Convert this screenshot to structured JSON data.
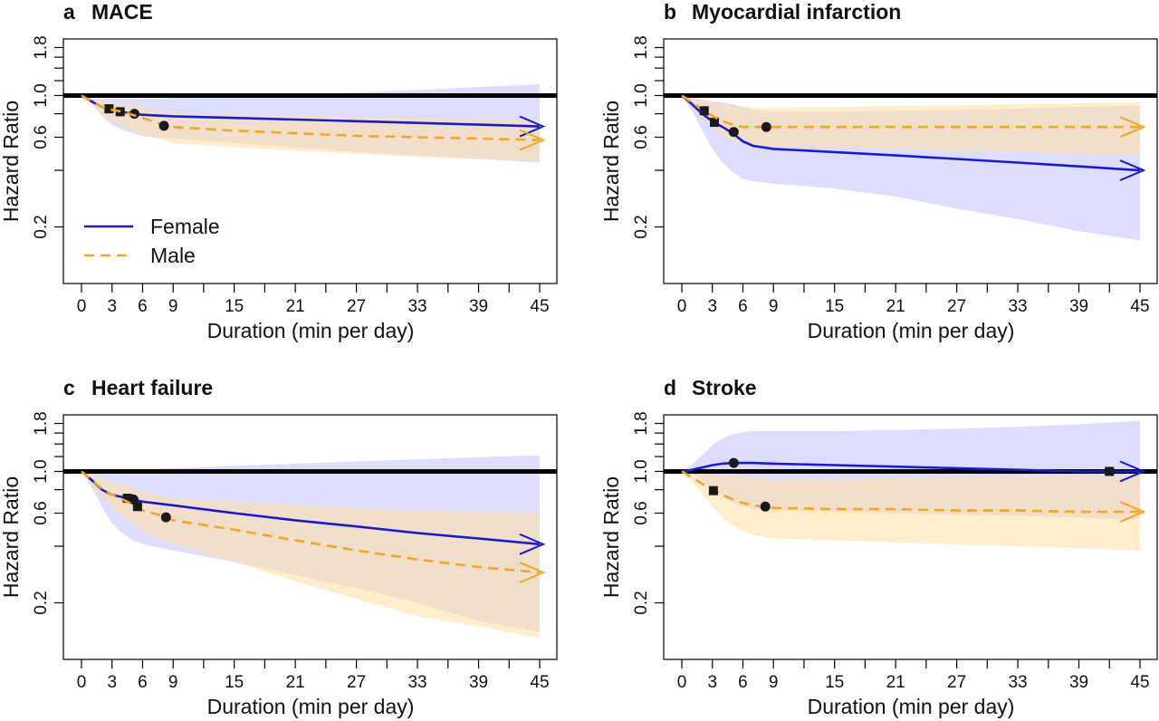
{
  "chart_data": [
    {
      "type": "line",
      "panel_letter": "a",
      "title": "MACE",
      "xlabel": "Duration (min per day)",
      "ylabel": "Hazard Ratio",
      "xticks": [
        0,
        3,
        6,
        9,
        15,
        21,
        27,
        33,
        39,
        45
      ],
      "yticks": [
        0.2,
        0.6,
        1.0,
        1.8
      ],
      "ytick_labels": [
        "0.2",
        "0.6",
        "1.0",
        "1.8"
      ],
      "xlim": [
        0,
        45
      ],
      "ylim": [
        0.1,
        2.0
      ],
      "y_scale": "log",
      "reference_line": 1.0,
      "legend": {
        "position": "bottom-left",
        "entries": [
          "Female",
          "Male"
        ]
      },
      "series": [
        {
          "name": "Female",
          "color": "#1b1bc9",
          "style": "solid",
          "x": [
            0,
            1,
            2,
            3,
            4,
            5,
            6,
            7,
            9,
            15,
            21,
            27,
            33,
            39,
            45
          ],
          "y": [
            1.0,
            0.93,
            0.87,
            0.84,
            0.82,
            0.8,
            0.79,
            0.785,
            0.775,
            0.76,
            0.745,
            0.73,
            0.715,
            0.7,
            0.685
          ],
          "ci_lower": [
            1.0,
            0.9,
            0.78,
            0.7,
            0.66,
            0.63,
            0.61,
            0.6,
            0.59,
            0.56,
            0.53,
            0.5,
            0.48,
            0.46,
            0.44
          ],
          "ci_upper": [
            1.0,
            0.97,
            0.96,
            0.96,
            0.96,
            0.96,
            0.96,
            0.96,
            0.97,
            0.99,
            1.01,
            1.04,
            1.07,
            1.11,
            1.15
          ],
          "markers": [
            {
              "x": 2.7,
              "y": 0.85,
              "shape": "square"
            },
            {
              "x": 3.8,
              "y": 0.82,
              "shape": "square"
            },
            {
              "x": 5.2,
              "y": 0.8,
              "shape": "circle"
            }
          ]
        },
        {
          "name": "Male",
          "color": "#f5a623",
          "style": "dashed",
          "x": [
            0,
            1,
            2,
            3,
            4,
            5,
            6,
            7,
            8,
            9,
            15,
            21,
            27,
            33,
            39,
            45
          ],
          "y": [
            1.0,
            0.93,
            0.87,
            0.84,
            0.82,
            0.79,
            0.76,
            0.73,
            0.7,
            0.68,
            0.65,
            0.63,
            0.61,
            0.6,
            0.59,
            0.58
          ],
          "ci_lower": [
            1.0,
            0.9,
            0.8,
            0.73,
            0.69,
            0.65,
            0.62,
            0.6,
            0.58,
            0.56,
            0.53,
            0.51,
            0.49,
            0.47,
            0.46,
            0.45
          ],
          "ci_upper": [
            1.0,
            0.96,
            0.93,
            0.91,
            0.89,
            0.88,
            0.86,
            0.84,
            0.83,
            0.81,
            0.79,
            0.78,
            0.77,
            0.76,
            0.75,
            0.74
          ],
          "markers": [
            {
              "x": 8.1,
              "y": 0.69,
              "shape": "circle"
            }
          ]
        }
      ]
    },
    {
      "type": "line",
      "panel_letter": "b",
      "title": "Myocardial infarction",
      "xlabel": "Duration (min per day)",
      "ylabel": "Hazard Ratio",
      "xticks": [
        0,
        3,
        6,
        9,
        15,
        21,
        27,
        33,
        39,
        45
      ],
      "yticks": [
        0.2,
        0.6,
        1.0,
        1.8
      ],
      "ytick_labels": [
        "0.2",
        "0.6",
        "1.0",
        "1.8"
      ],
      "xlim": [
        0,
        45
      ],
      "ylim": [
        0.1,
        2.0
      ],
      "y_scale": "log",
      "reference_line": 1.0,
      "series": [
        {
          "name": "Female",
          "color": "#1b1bc9",
          "style": "solid",
          "x": [
            0,
            1,
            2,
            3,
            4,
            5,
            6,
            7,
            9,
            15,
            21,
            27,
            33,
            39,
            45
          ],
          "y": [
            1.0,
            0.9,
            0.8,
            0.73,
            0.68,
            0.63,
            0.57,
            0.54,
            0.52,
            0.5,
            0.48,
            0.46,
            0.44,
            0.42,
            0.4
          ],
          "ci_lower": [
            1.0,
            0.83,
            0.65,
            0.52,
            0.44,
            0.39,
            0.36,
            0.35,
            0.34,
            0.32,
            0.29,
            0.25,
            0.22,
            0.19,
            0.17
          ],
          "ci_upper": [
            1.0,
            0.97,
            0.95,
            0.93,
            0.92,
            0.9,
            0.87,
            0.84,
            0.82,
            0.82,
            0.83,
            0.84,
            0.85,
            0.87,
            0.88
          ],
          "markers": [
            {
              "x": 3.2,
              "y": 0.72,
              "shape": "square"
            },
            {
              "x": 5.1,
              "y": 0.64,
              "shape": "circle"
            }
          ]
        },
        {
          "name": "Male",
          "color": "#f5a623",
          "style": "dashed",
          "x": [
            0,
            1,
            2,
            3,
            4,
            5,
            6,
            7,
            8,
            9,
            15,
            21,
            27,
            33,
            39,
            45
          ],
          "y": [
            1.0,
            0.92,
            0.84,
            0.78,
            0.73,
            0.7,
            0.68,
            0.68,
            0.68,
            0.68,
            0.68,
            0.68,
            0.68,
            0.68,
            0.68,
            0.68
          ],
          "ci_lower": [
            1.0,
            0.88,
            0.76,
            0.68,
            0.62,
            0.58,
            0.56,
            0.55,
            0.54,
            0.54,
            0.53,
            0.52,
            0.51,
            0.5,
            0.49,
            0.48
          ],
          "ci_upper": [
            1.0,
            0.98,
            0.95,
            0.92,
            0.9,
            0.88,
            0.87,
            0.86,
            0.86,
            0.86,
            0.87,
            0.88,
            0.89,
            0.9,
            0.91,
            0.92
          ],
          "markers": [
            {
              "x": 2.2,
              "y": 0.83,
              "shape": "square"
            },
            {
              "x": 8.3,
              "y": 0.68,
              "shape": "circle"
            }
          ]
        }
      ]
    },
    {
      "type": "line",
      "panel_letter": "c",
      "title": "Heart failure",
      "xlabel": "Duration (min per day)",
      "ylabel": "Hazard Ratio",
      "xticks": [
        0,
        3,
        6,
        9,
        15,
        21,
        27,
        33,
        39,
        45
      ],
      "yticks": [
        0.2,
        0.6,
        1.0,
        1.8
      ],
      "ytick_labels": [
        "0.2",
        "0.6",
        "1.0",
        "1.8"
      ],
      "xlim": [
        0,
        45
      ],
      "ylim": [
        0.1,
        2.0
      ],
      "y_scale": "log",
      "reference_line": 1.0,
      "series": [
        {
          "name": "Female",
          "color": "#1b1bc9",
          "style": "solid",
          "x": [
            0,
            1,
            2,
            3,
            4,
            5,
            6,
            7,
            9,
            15,
            21,
            27,
            33,
            39,
            45
          ],
          "y": [
            1.0,
            0.9,
            0.8,
            0.75,
            0.73,
            0.71,
            0.69,
            0.68,
            0.66,
            0.6,
            0.55,
            0.51,
            0.47,
            0.44,
            0.41
          ],
          "ci_lower": [
            1.0,
            0.82,
            0.65,
            0.53,
            0.47,
            0.43,
            0.41,
            0.4,
            0.38,
            0.33,
            0.28,
            0.24,
            0.2,
            0.16,
            0.14
          ],
          "ci_upper": [
            1.0,
            0.98,
            0.98,
            0.99,
            1.0,
            1.01,
            1.02,
            1.03,
            1.04,
            1.07,
            1.1,
            1.13,
            1.16,
            1.19,
            1.22
          ],
          "markers": [
            {
              "x": 4.5,
              "y": 0.72,
              "shape": "square"
            },
            {
              "x": 5.1,
              "y": 0.71,
              "shape": "circle"
            }
          ]
        },
        {
          "name": "Male",
          "color": "#f5a623",
          "style": "dashed",
          "x": [
            0,
            1,
            2,
            3,
            4,
            5,
            6,
            7,
            8,
            9,
            15,
            21,
            27,
            33,
            39,
            45
          ],
          "y": [
            1.0,
            0.9,
            0.81,
            0.75,
            0.71,
            0.67,
            0.62,
            0.6,
            0.58,
            0.55,
            0.49,
            0.43,
            0.38,
            0.34,
            0.31,
            0.29
          ],
          "ci_lower": [
            1.0,
            0.85,
            0.72,
            0.64,
            0.58,
            0.53,
            0.48,
            0.45,
            0.43,
            0.41,
            0.33,
            0.26,
            0.21,
            0.17,
            0.15,
            0.13
          ],
          "ci_upper": [
            1.0,
            0.96,
            0.92,
            0.88,
            0.85,
            0.82,
            0.78,
            0.76,
            0.74,
            0.72,
            0.69,
            0.66,
            0.64,
            0.62,
            0.61,
            0.6
          ],
          "markers": [
            {
              "x": 5.5,
              "y": 0.65,
              "shape": "square"
            },
            {
              "x": 8.3,
              "y": 0.57,
              "shape": "circle"
            }
          ]
        }
      ]
    },
    {
      "type": "line",
      "panel_letter": "d",
      "title": "Stroke",
      "xlabel": "Duration (min per day)",
      "ylabel": "Hazard Ratio",
      "xticks": [
        0,
        3,
        6,
        9,
        15,
        21,
        27,
        33,
        39,
        45
      ],
      "yticks": [
        0.2,
        0.6,
        1.0,
        1.8
      ],
      "ytick_labels": [
        "0.2",
        "0.6",
        "1.0",
        "1.8"
      ],
      "xlim": [
        0,
        45
      ],
      "ylim": [
        0.1,
        2.0
      ],
      "y_scale": "log",
      "reference_line": 1.0,
      "series": [
        {
          "name": "Female",
          "color": "#1b1bc9",
          "style": "solid",
          "x": [
            0,
            1,
            2,
            3,
            4,
            5,
            6,
            7,
            9,
            15,
            21,
            27,
            33,
            39,
            42,
            45
          ],
          "y": [
            1.0,
            1.02,
            1.05,
            1.08,
            1.1,
            1.11,
            1.11,
            1.11,
            1.1,
            1.08,
            1.06,
            1.04,
            1.02,
            1.0,
            1.0,
            1.0
          ],
          "ci_lower": [
            1.0,
            0.97,
            0.9,
            0.8,
            0.73,
            0.68,
            0.65,
            0.63,
            0.62,
            0.61,
            0.6,
            0.59,
            0.58,
            0.57,
            0.56,
            0.56
          ],
          "ci_upper": [
            1.0,
            1.09,
            1.22,
            1.38,
            1.5,
            1.58,
            1.62,
            1.64,
            1.64,
            1.64,
            1.66,
            1.69,
            1.73,
            1.78,
            1.82,
            1.86
          ],
          "markers": [
            {
              "x": 5.1,
              "y": 1.11,
              "shape": "circle"
            },
            {
              "x": 42.0,
              "y": 1.0,
              "shape": "square"
            }
          ]
        },
        {
          "name": "Male",
          "color": "#f5a623",
          "style": "dashed",
          "x": [
            0,
            1,
            2,
            3,
            4,
            5,
            6,
            7,
            8,
            9,
            15,
            21,
            27,
            33,
            39,
            45
          ],
          "y": [
            1.0,
            0.93,
            0.86,
            0.8,
            0.75,
            0.71,
            0.68,
            0.66,
            0.65,
            0.64,
            0.63,
            0.63,
            0.62,
            0.62,
            0.61,
            0.61
          ],
          "ci_lower": [
            1.0,
            0.88,
            0.76,
            0.65,
            0.57,
            0.52,
            0.48,
            0.46,
            0.45,
            0.44,
            0.43,
            0.42,
            0.41,
            0.4,
            0.39,
            0.38
          ],
          "ci_upper": [
            1.0,
            0.99,
            0.98,
            0.97,
            0.96,
            0.95,
            0.94,
            0.93,
            0.92,
            0.91,
            0.91,
            0.92,
            0.93,
            0.94,
            0.95,
            0.96
          ],
          "markers": [
            {
              "x": 3.1,
              "y": 0.79,
              "shape": "square"
            },
            {
              "x": 8.2,
              "y": 0.65,
              "shape": "circle"
            }
          ]
        }
      ]
    }
  ]
}
